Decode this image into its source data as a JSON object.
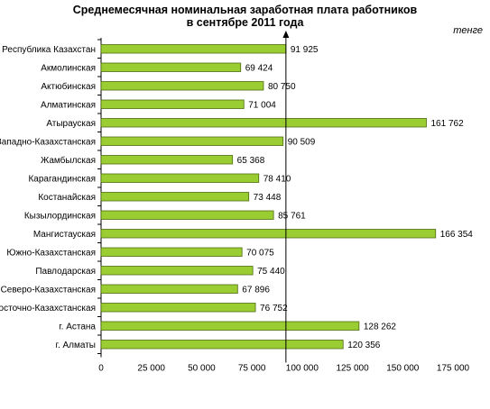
{
  "chart_data": {
    "type": "bar",
    "orientation": "horizontal",
    "title_lines": [
      "Среднемесячная номинальная заработная плата работников",
      "в сентябре 2011 года"
    ],
    "unit": "тенге",
    "categories": [
      "Республика Казахстан",
      "Акмолинская",
      "Актюбинская",
      "Алматинская",
      "Атырауская",
      "Западно-Казахстанская",
      "Жамбылская",
      "Карагандинская",
      "Костанайская",
      "Кызылординская",
      "Мангистауская",
      "Южно-Казахстанская",
      "Павлодарская",
      "Северо-Казахстанская",
      "Восточно-Казахстанская",
      "г. Астана",
      "г. Алматы"
    ],
    "values": [
      91925,
      69424,
      80750,
      71004,
      161762,
      90509,
      65368,
      78410,
      73448,
      85761,
      166354,
      70075,
      75440,
      67896,
      76752,
      128262,
      120356
    ],
    "value_labels": [
      "91 925",
      "69 424",
      "80 750",
      "71 004",
      "161 762",
      "90 509",
      "65 368",
      "78 410",
      "73 448",
      "85 761",
      "166 354",
      "70 075",
      "75 440",
      "67 896",
      "76 752",
      "128 262",
      "120 356"
    ],
    "xlim": [
      0,
      175000
    ],
    "xticks": [
      0,
      25000,
      50000,
      75000,
      100000,
      125000,
      150000,
      175000
    ],
    "xtick_labels": [
      "0",
      "25 000",
      "50 000",
      "75 000",
      "100 000",
      "125 000",
      "150 000",
      "175 000"
    ],
    "reference_line": {
      "value": 91925
    },
    "grid": false,
    "colors": {
      "bar_fill": "#9acd32",
      "bar_stroke": "#4f6b10",
      "axis": "#000000"
    }
  }
}
